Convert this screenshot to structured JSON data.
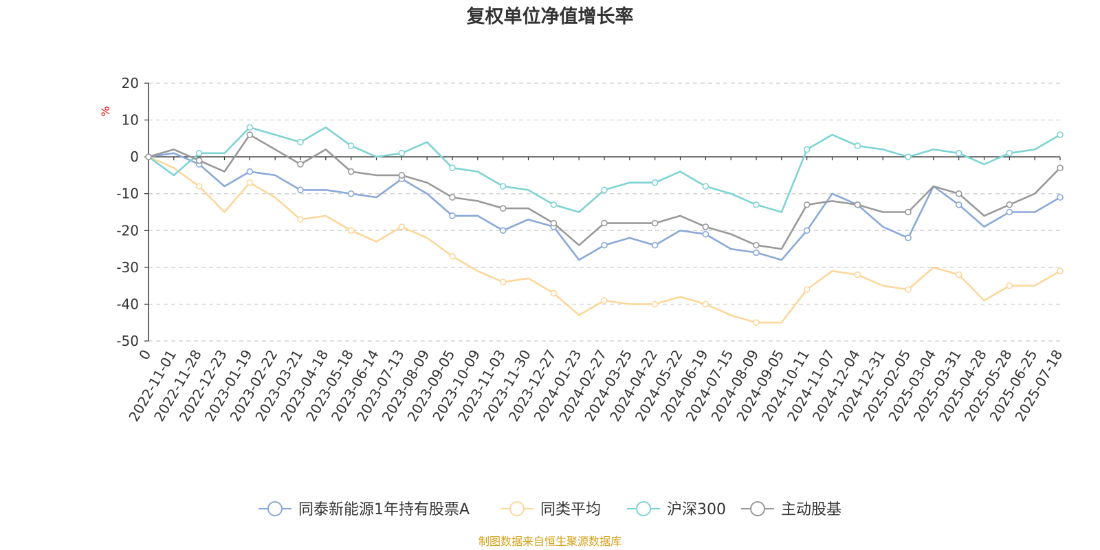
{
  "chart_data": {
    "type": "line",
    "title": "复权单位净值增长率",
    "ylabel": "%",
    "ylim": [
      -50,
      20
    ],
    "yticks": [
      20,
      10,
      0,
      -10,
      -20,
      -30,
      -40,
      -50
    ],
    "grid": true,
    "legend_position": "bottom",
    "x": [
      "0",
      "2022-11-01",
      "2022-11-28",
      "2022-12-23",
      "2023-01-19",
      "2023-02-22",
      "2023-03-21",
      "2023-04-18",
      "2023-05-18",
      "2023-06-14",
      "2023-07-13",
      "2023-08-09",
      "2023-09-05",
      "2023-10-09",
      "2023-11-03",
      "2023-11-30",
      "2023-12-27",
      "2024-01-23",
      "2024-02-27",
      "2024-03-25",
      "2024-04-22",
      "2024-05-22",
      "2024-06-19",
      "2024-07-15",
      "2024-08-09",
      "2024-09-05",
      "2024-10-11",
      "2024-11-07",
      "2024-12-04",
      "2024-12-31",
      "2025-02-05",
      "2025-03-04",
      "2025-03-31",
      "2025-04-28",
      "2025-05-28",
      "2025-06-25",
      "2025-07-18"
    ],
    "series": [
      {
        "name": "同泰新能源1年持有股票A",
        "color": "#8aa8d8",
        "values": [
          0,
          1,
          -2,
          -8,
          -4,
          -5,
          -9,
          -9,
          -10,
          -11,
          -6,
          -10,
          -16,
          -16,
          -20,
          -17,
          -19,
          -28,
          -24,
          -22,
          -24,
          -20,
          -21,
          -25,
          -26,
          -28,
          -20,
          -10,
          -13,
          -19,
          -22,
          -8,
          -13,
          -19,
          -15,
          -15,
          -11
        ]
      },
      {
        "name": "同类平均",
        "color": "#fcd79a",
        "values": [
          0,
          -3,
          -8,
          -15,
          -7,
          -11,
          -17,
          -16,
          -20,
          -23,
          -19,
          -22,
          -27,
          -31,
          -34,
          -33,
          -37,
          -43,
          -39,
          -40,
          -40,
          -38,
          -40,
          -43,
          -45,
          -45,
          -36,
          -31,
          -32,
          -35,
          -36,
          -30,
          -32,
          -39,
          -35,
          -35,
          -31
        ]
      },
      {
        "name": "沪深300",
        "color": "#7fd3d4",
        "values": [
          0,
          -5,
          1,
          1,
          8,
          6,
          4,
          8,
          3,
          0,
          1,
          4,
          -3,
          -4,
          -8,
          -9,
          -13,
          -15,
          -9,
          -7,
          -7,
          -4,
          -8,
          -10,
          -13,
          -15,
          2,
          6,
          3,
          2,
          0,
          2,
          1,
          -2,
          1,
          2,
          6
        ]
      },
      {
        "name": "主动股基",
        "color": "#999999",
        "values": [
          0,
          2,
          -1,
          -4,
          6,
          2,
          -2,
          2,
          -4,
          -5,
          -5,
          -7,
          -11,
          -12,
          -14,
          -14,
          -18,
          -24,
          -18,
          -18,
          -18,
          -16,
          -19,
          -21,
          -24,
          -25,
          -13,
          -12,
          -13,
          -15,
          -15,
          -8,
          -10,
          -16,
          -13,
          -10,
          -3
        ]
      }
    ]
  },
  "footer": {
    "source_label": "制图数据来自恒生聚源数据库"
  },
  "colors": {
    "axis": "#333333",
    "grid": "#cccccc",
    "unit": "#ff0000",
    "source": "#d4a017"
  }
}
